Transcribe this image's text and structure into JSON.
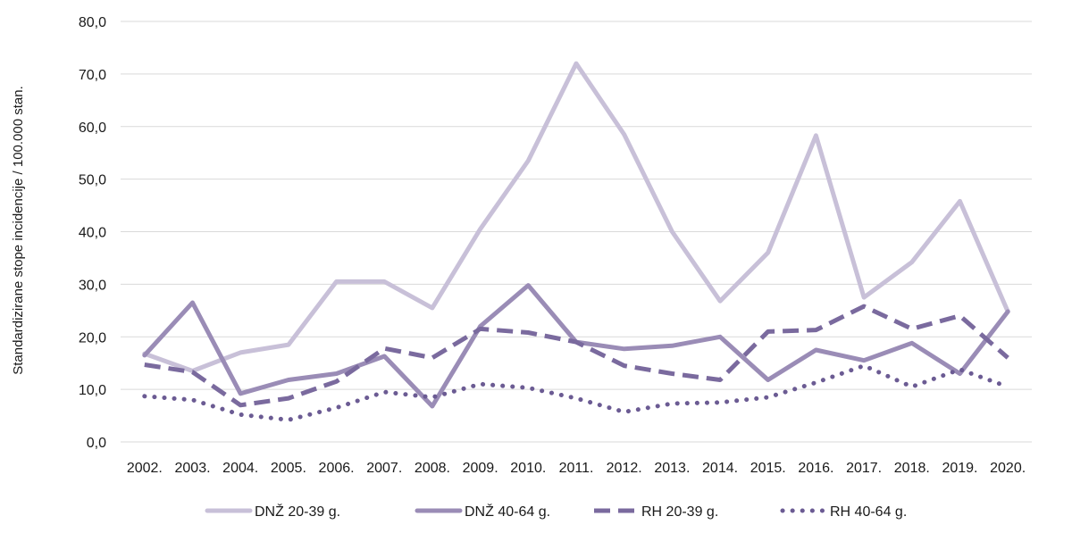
{
  "chart_data": {
    "type": "line",
    "ylabel": "Standardizirane stope incidencije / 100.000 stan.",
    "ylim": [
      0,
      80
    ],
    "yticks": [
      "0,0",
      "10,0",
      "20,0",
      "30,0",
      "40,0",
      "50,0",
      "60,0",
      "70,0",
      "80,0"
    ],
    "grid": true,
    "legend_position": "bottom",
    "categories": [
      "2002.",
      "2003.",
      "2004.",
      "2005.",
      "2006.",
      "2007.",
      "2008.",
      "2009.",
      "2010.",
      "2011.",
      "2012.",
      "2013.",
      "2014.",
      "2015.",
      "2016.",
      "2017.",
      "2018.",
      "2019.",
      "2020."
    ],
    "series": [
      {
        "name": "DNŽ 20-39 g.",
        "color": "#c8c0d8",
        "style": "solid",
        "values": [
          16.8,
          13.5,
          17.0,
          18.5,
          30.5,
          30.5,
          25.5,
          40.5,
          53.5,
          72.0,
          58.5,
          40.0,
          26.8,
          36.0,
          58.3,
          27.5,
          34.2,
          45.8,
          24.8
        ]
      },
      {
        "name": "DNŽ 40-64 g.",
        "color": "#9a8cb6",
        "style": "solid",
        "values": [
          16.5,
          26.5,
          9.2,
          11.8,
          13.0,
          16.3,
          6.8,
          22.0,
          29.8,
          19.0,
          17.7,
          18.3,
          20.0,
          11.8,
          17.5,
          15.5,
          18.8,
          13.0,
          24.8
        ]
      },
      {
        "name": "RH 20-39 g.",
        "color": "#7a6a9e",
        "style": "dashed",
        "values": [
          14.7,
          13.3,
          7.0,
          8.3,
          11.5,
          17.8,
          16.0,
          21.5,
          20.8,
          19.0,
          14.5,
          13.0,
          11.8,
          21.0,
          21.3,
          25.8,
          21.5,
          24.0,
          16.0
        ]
      },
      {
        "name": "RH 40-64 g.",
        "color": "#6b5b93",
        "style": "dotted",
        "values": [
          8.7,
          8.0,
          5.2,
          4.2,
          6.5,
          9.5,
          8.5,
          11.0,
          10.3,
          8.3,
          5.7,
          7.3,
          7.5,
          8.5,
          11.3,
          14.5,
          10.5,
          13.8,
          10.5
        ]
      }
    ]
  }
}
